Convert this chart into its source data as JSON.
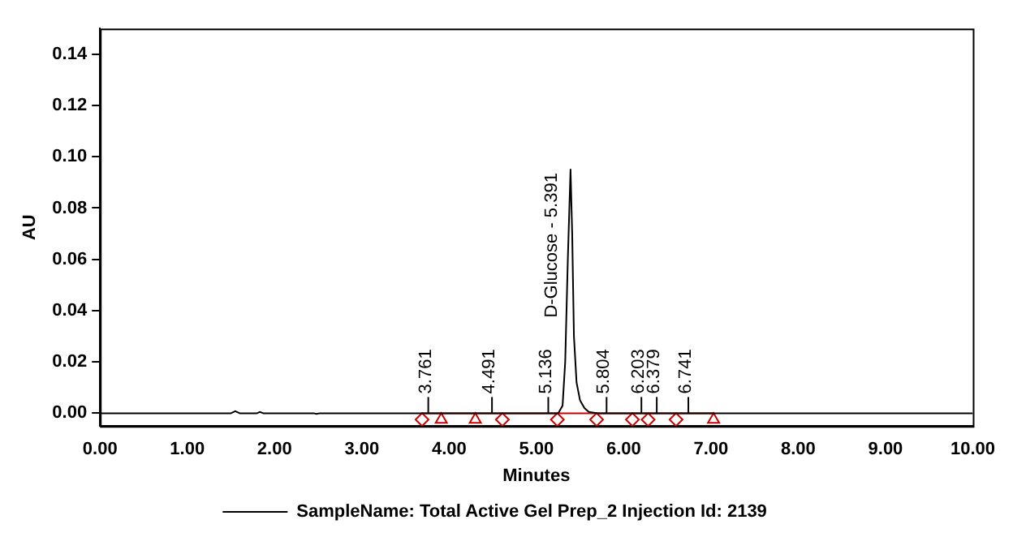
{
  "chart_data": {
    "type": "line",
    "xlabel": "Minutes",
    "ylabel": "AU",
    "xlim": [
      0,
      10
    ],
    "ylim": [
      -0.005,
      0.15
    ],
    "xticks": [
      {
        "value": 0,
        "label": "0.00"
      },
      {
        "value": 1,
        "label": "1.00"
      },
      {
        "value": 2,
        "label": "2.00"
      },
      {
        "value": 3,
        "label": "3.00"
      },
      {
        "value": 4,
        "label": "4.00"
      },
      {
        "value": 5,
        "label": "5.00"
      },
      {
        "value": 6,
        "label": "6.00"
      },
      {
        "value": 7,
        "label": "7.00"
      },
      {
        "value": 8,
        "label": "8.00"
      },
      {
        "value": 9,
        "label": "9.00"
      },
      {
        "value": 10,
        "label": "10.00"
      }
    ],
    "yticks": [
      {
        "value": 0,
        "label": "0.00"
      },
      {
        "value": 0.02,
        "label": "0.02"
      },
      {
        "value": 0.04,
        "label": "0.04"
      },
      {
        "value": 0.06,
        "label": "0.06"
      },
      {
        "value": 0.08,
        "label": "0.08"
      },
      {
        "value": 0.1,
        "label": "0.10"
      },
      {
        "value": 0.12,
        "label": "0.12"
      },
      {
        "value": 0.14,
        "label": "0.14"
      }
    ],
    "grid": false,
    "legend": "bottom",
    "series": [
      {
        "name": "SampleName: Total Active Gel Prep_2 Injection Id: 2139",
        "color": "#000000",
        "marker": "none",
        "x": [
          0,
          1.5,
          1.55,
          1.6,
          1.8,
          1.83,
          1.87,
          2.45,
          2.48,
          2.52,
          5.25,
          5.3,
          5.33,
          5.36,
          5.391,
          5.41,
          5.43,
          5.46,
          5.5,
          5.55,
          5.6,
          5.7,
          10
        ],
        "values": [
          0,
          0,
          0.0008,
          0,
          0,
          0.0005,
          0,
          0,
          -0.0003,
          0,
          0,
          0.003,
          0.02,
          0.06,
          0.095,
          0.07,
          0.03,
          0.012,
          0.005,
          0.002,
          0.0005,
          0,
          0
        ]
      },
      {
        "color": "#cc0000",
        "marker": "none",
        "x": [
          3.69,
          7.03
        ],
        "values": [
          0,
          0
        ]
      },
      {
        "type": "scatter",
        "color": "#cc0000",
        "marker": "diamond",
        "x": [
          3.69,
          4.61,
          5.24,
          5.69,
          6.1,
          6.28,
          6.6
        ],
        "values": [
          -0.0025,
          -0.0025,
          -0.0025,
          -0.0025,
          -0.0025,
          -0.0025,
          -0.0025
        ]
      },
      {
        "type": "scatter",
        "color": "#cc0000",
        "marker": "triangle",
        "x": [
          3.91,
          4.3,
          7.03
        ],
        "values": [
          -0.0025,
          -0.0025,
          -0.0025
        ]
      }
    ],
    "annotations": [
      {
        "text": "3.761",
        "x": 3.761,
        "y": 0
      },
      {
        "text": "4.491",
        "x": 4.491,
        "y": 0
      },
      {
        "text": "5.136",
        "x": 5.136,
        "y": 0
      },
      {
        "text": "D-Glucose - 5.391",
        "x": 5.391,
        "y": 0.095
      },
      {
        "text": "5.804",
        "x": 5.804,
        "y": 0
      },
      {
        "text": "6.203",
        "x": 6.203,
        "y": 0
      },
      {
        "text": "6.379",
        "x": 6.379,
        "y": 0
      },
      {
        "text": "6.741",
        "x": 6.741,
        "y": 0
      }
    ]
  }
}
